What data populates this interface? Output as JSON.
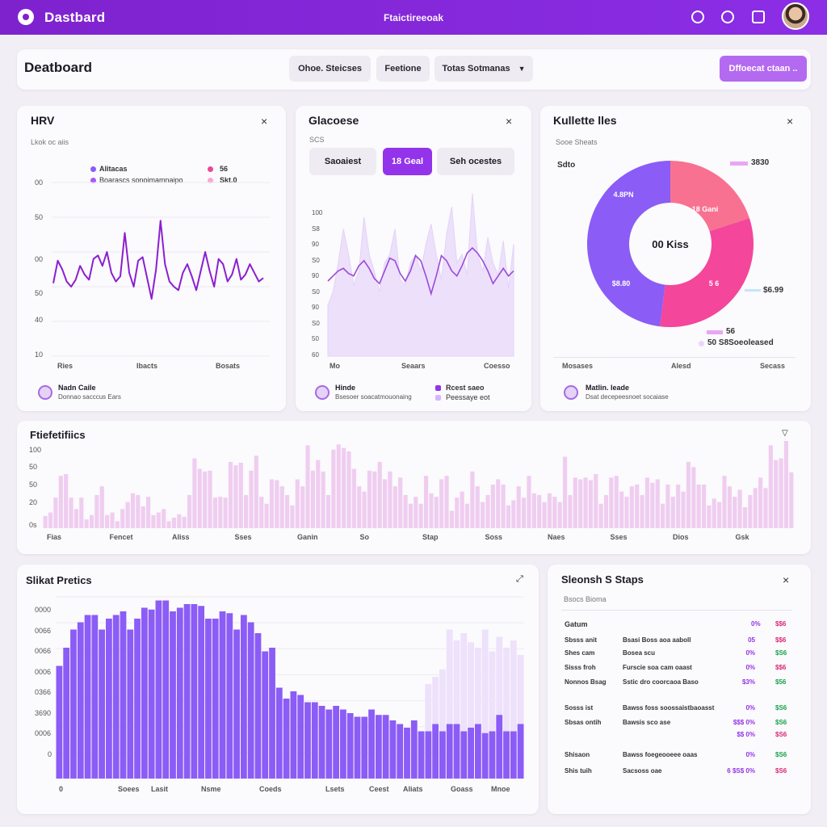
{
  "topbar": {
    "brand": "Dastbard",
    "center": "Ftaictireeoak",
    "icons": [
      "bell-icon",
      "settings-icon",
      "calendar-icon"
    ]
  },
  "header": {
    "title": "Deatboard",
    "pills": [
      "Ohoe. Steicses",
      "Feetione",
      "Totas Sotmanas"
    ],
    "primary": "Dffoecat ctaan .."
  },
  "hrv": {
    "title": "HRV",
    "sub": "Lkok oc aiis",
    "legend": [
      "Alitacas",
      "Boarascs sonoimamnaipo"
    ],
    "legend_right": [
      "56",
      "Skt.0"
    ],
    "y_labels": [
      "00",
      "50",
      "00",
      "50",
      "40",
      "10"
    ],
    "x_labels": [
      "Ries",
      "Ibacts",
      "Bosats"
    ],
    "footer_title": "Nadn Caile",
    "footer_sub": "Donnao sacccus Ears",
    "chart_data": {
      "type": "line",
      "y": [
        42,
        55,
        50,
        43,
        40,
        44,
        52,
        47,
        44,
        56,
        58,
        52,
        60,
        48,
        43,
        46,
        71,
        48,
        40,
        55,
        57,
        45,
        33,
        50,
        78,
        53,
        43,
        40,
        38,
        48,
        53,
        46,
        38,
        49,
        60,
        49,
        40,
        56,
        53,
        43,
        47,
        56,
        44,
        47,
        53,
        48,
        43,
        45
      ]
    }
  },
  "glucose": {
    "title": "Glacoese",
    "sub": "SCS",
    "segments": [
      "Saoaiest",
      "18 Geal",
      "Seh ocestes"
    ],
    "active_segment": 1,
    "y_labels": [
      "100",
      "S8",
      "90",
      "S0",
      "90",
      "S0",
      "90",
      "S0",
      "50",
      "60"
    ],
    "x_labels": [
      "Mo",
      "Seaars",
      "Coesso"
    ],
    "legend": [
      "Rcest saeo",
      "Peessaye eot"
    ],
    "footer_title": "Hinde",
    "footer_sub": "Bsesoer soacatmouonaing",
    "chart_data": {
      "type": "area",
      "area": [
        30,
        38,
        55,
        75,
        60,
        42,
        50,
        82,
        60,
        50,
        38,
        55,
        60,
        75,
        45,
        42,
        55,
        60,
        50,
        66,
        78,
        60,
        45,
        72,
        88,
        55,
        60,
        48,
        96,
        60,
        50,
        70,
        55,
        48,
        68,
        40,
        66
      ],
      "line": [
        20,
        22,
        24,
        25,
        23,
        22,
        26,
        28,
        25,
        21,
        19,
        24,
        29,
        28,
        23,
        20,
        24,
        30,
        28,
        22,
        15,
        22,
        30,
        28,
        24,
        22,
        26,
        31,
        33,
        31,
        28,
        24,
        19,
        22,
        25,
        22,
        24
      ]
    }
  },
  "ratio": {
    "title": "Kullette lles",
    "sub": "Sooe Sheats",
    "left_lbl": "Sdto",
    "labels": [
      "4.8PN",
      "18 Gani",
      "00 Kiss",
      "$8.80",
      "5 6"
    ],
    "callouts": [
      "3830",
      "$6.99",
      "56",
      "50 S8Soeoleased"
    ],
    "x_labels": [
      "Mosases",
      "Alesd",
      "Secass"
    ],
    "footer_title": "Matlin. leade",
    "footer_sub": "Dsat decepeesnoet socaiase",
    "chart_data": {
      "type": "pie",
      "slices": [
        {
          "label": "4.8PN",
          "value": 48,
          "color": "#8b5cf6"
        },
        {
          "label": "18 Gani",
          "value": 20,
          "color": "#f87191"
        },
        {
          "label": "5 6",
          "value": 32,
          "color": "#f4469a"
        }
      ],
      "center": "00 Kiss"
    }
  },
  "freq": {
    "title": "Ftiefetifiics",
    "y_labels": [
      "100",
      "50",
      "50",
      "20",
      "0s"
    ],
    "x_labels": [
      "Fias",
      "Fencet",
      "Aliss",
      "Sses",
      "Ganin",
      "So",
      "Stap",
      "Soss",
      "Naes",
      "Sses",
      "Dios",
      "Gsk"
    ],
    "chart_data": {
      "type": "bar",
      "values": [
        14,
        18,
        35,
        60,
        62,
        35,
        22,
        35,
        10,
        15,
        38,
        48,
        15,
        18,
        8,
        22,
        30,
        40,
        38,
        25,
        36,
        15,
        18,
        22,
        8,
        12,
        16,
        13,
        38,
        80,
        68,
        65,
        66,
        35,
        36,
        35,
        76,
        72,
        75,
        38,
        66,
        83,
        36,
        28,
        56,
        55,
        48,
        38,
        26,
        56,
        48,
        95,
        66,
        78,
        65,
        38,
        90,
        96,
        92,
        88,
        68,
        48,
        42,
        66,
        65,
        76,
        56,
        65,
        48,
        58,
        38,
        28,
        36,
        28,
        60,
        40,
        36,
        56,
        60,
        20,
        35,
        42,
        28,
        65,
        48,
        30,
        38,
        50,
        56,
        50,
        26,
        32,
        48,
        35,
        60,
        40,
        38,
        30,
        40,
        36,
        30,
        82,
        38,
        58,
        56,
        58,
        55,
        62,
        28,
        38,
        58,
        60,
        42,
        36,
        48,
        50,
        38,
        58,
        52,
        56,
        28,
        50,
        36,
        50,
        42,
        76,
        70,
        50,
        50,
        26,
        34,
        30,
        60,
        48,
        36,
        44,
        24,
        38,
        46,
        58,
        46,
        95,
        78,
        80,
        100,
        64
      ]
    }
  },
  "short": {
    "title": "Slikat Pretics",
    "y_labels": [
      "0000",
      "0066",
      "0066",
      "0006",
      "0366",
      "3690",
      "0006",
      "0"
    ],
    "x_labels": [
      "0",
      "Soees",
      "Lasit",
      "Nsme",
      "Coeds",
      "Lsets",
      "Ceest",
      "Aliats",
      "Goass",
      "Mnoe"
    ],
    "chart_data": {
      "type": "bar",
      "series": [
        {
          "name": "",
          "values": [
            62,
            72,
            82,
            86,
            90,
            90,
            82,
            88,
            90,
            92,
            82,
            88,
            94,
            93,
            98,
            98,
            92,
            94,
            96,
            96,
            95,
            88,
            88,
            92,
            91,
            82,
            90,
            86,
            80,
            70,
            72,
            50,
            44,
            48,
            46,
            42,
            42,
            40,
            38,
            40,
            38,
            36,
            34,
            34,
            38,
            35,
            35,
            32,
            30,
            28,
            32,
            26,
            26,
            30,
            26,
            30,
            30,
            26,
            28,
            30,
            25,
            26,
            35,
            26,
            26,
            30
          ]
        },
        {
          "name": "",
          "values": [
            0,
            0,
            0,
            0,
            0,
            0,
            0,
            0,
            0,
            0,
            0,
            0,
            0,
            0,
            0,
            0,
            0,
            0,
            0,
            0,
            0,
            0,
            0,
            0,
            0,
            0,
            0,
            0,
            0,
            0,
            0,
            0,
            0,
            0,
            0,
            0,
            0,
            0,
            0,
            0,
            0,
            0,
            0,
            0,
            0,
            0,
            0,
            0,
            0,
            0,
            0,
            0,
            0,
            0,
            0,
            0,
            0,
            0,
            0,
            0,
            0,
            0,
            0,
            0,
            0,
            0
          ]
        }
      ],
      "ghost": [
        0,
        0,
        0,
        0,
        0,
        0,
        0,
        0,
        0,
        0,
        0,
        0,
        0,
        0,
        0,
        0,
        0,
        0,
        0,
        0,
        0,
        0,
        0,
        0,
        0,
        0,
        0,
        0,
        0,
        0,
        0,
        0,
        0,
        0,
        0,
        0,
        0,
        0,
        0,
        0,
        0,
        0,
        0,
        0,
        0,
        0,
        0,
        0,
        0,
        0,
        0,
        0,
        52,
        56,
        60,
        82,
        76,
        80,
        75,
        72,
        82,
        70,
        78,
        72,
        76,
        68
      ]
    }
  },
  "steps": {
    "title": "Sleonsh S Staps",
    "sub": "Bsocs Bioma",
    "header": "Gatum",
    "rows": [
      [
        "Sbsss anit",
        "Bsasi Boss aoa aaboll",
        "05",
        "$$6"
      ],
      [
        "Shes cam",
        "Bosea scu",
        "0%",
        "$S6"
      ],
      [
        "Sisss froh",
        "Furscie soa cam oaast",
        "0%",
        "$$6"
      ],
      [
        "Nonnos Bsag",
        "Sstic dro coorcaoa Baso",
        "$3%",
        "$56"
      ],
      [
        "Sosss ist",
        "Bawss foss soossaistbaoasst",
        "0%",
        "$S6"
      ],
      [
        "Sbsas ontih",
        "Bawsis sco ase",
        "$$$ 0%",
        "$S6"
      ],
      [
        "",
        "",
        "$$ 0%",
        "$S6"
      ],
      [
        "Shisaon",
        "Bawss foegeooeee oaas",
        "0%",
        "$S6"
      ],
      [
        "Shis tuih",
        "Sacsoss oae",
        "6 $S$ 0%",
        "$S6"
      ]
    ]
  }
}
